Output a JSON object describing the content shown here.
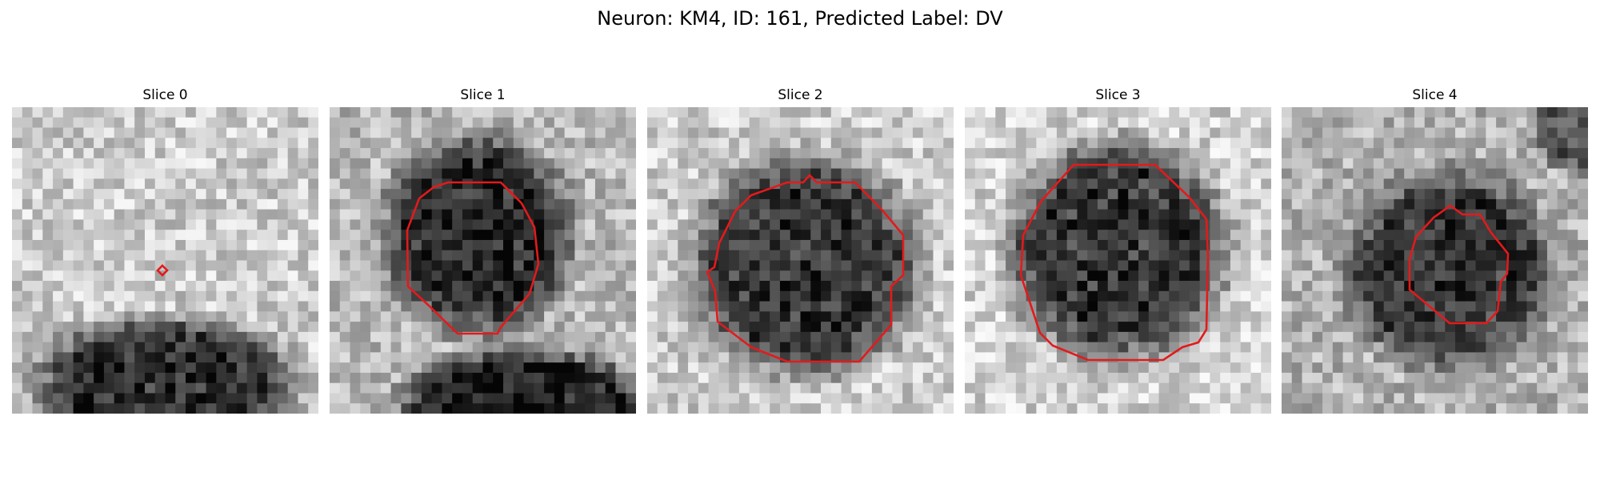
{
  "figure": {
    "title": "Neuron: KM4, ID: 161, Predicted Label: DV"
  },
  "colors": {
    "contour": "#e31a1c",
    "background": "#ffffff"
  },
  "panels": [
    {
      "title": "Slice 0",
      "blob": "lower-dark-region",
      "contour": "tiny-diamond"
    },
    {
      "title": "Slice 1",
      "blob": "dark-cell-with-lower-region",
      "contour": "octagon"
    },
    {
      "title": "Slice 2",
      "blob": "large-dark-cell",
      "contour": "octagon"
    },
    {
      "title": "Slice 3",
      "blob": "large-dark-cell",
      "contour": "octagon"
    },
    {
      "title": "Slice 4",
      "blob": "small-dark-cell",
      "contour": "irregular"
    }
  ]
}
